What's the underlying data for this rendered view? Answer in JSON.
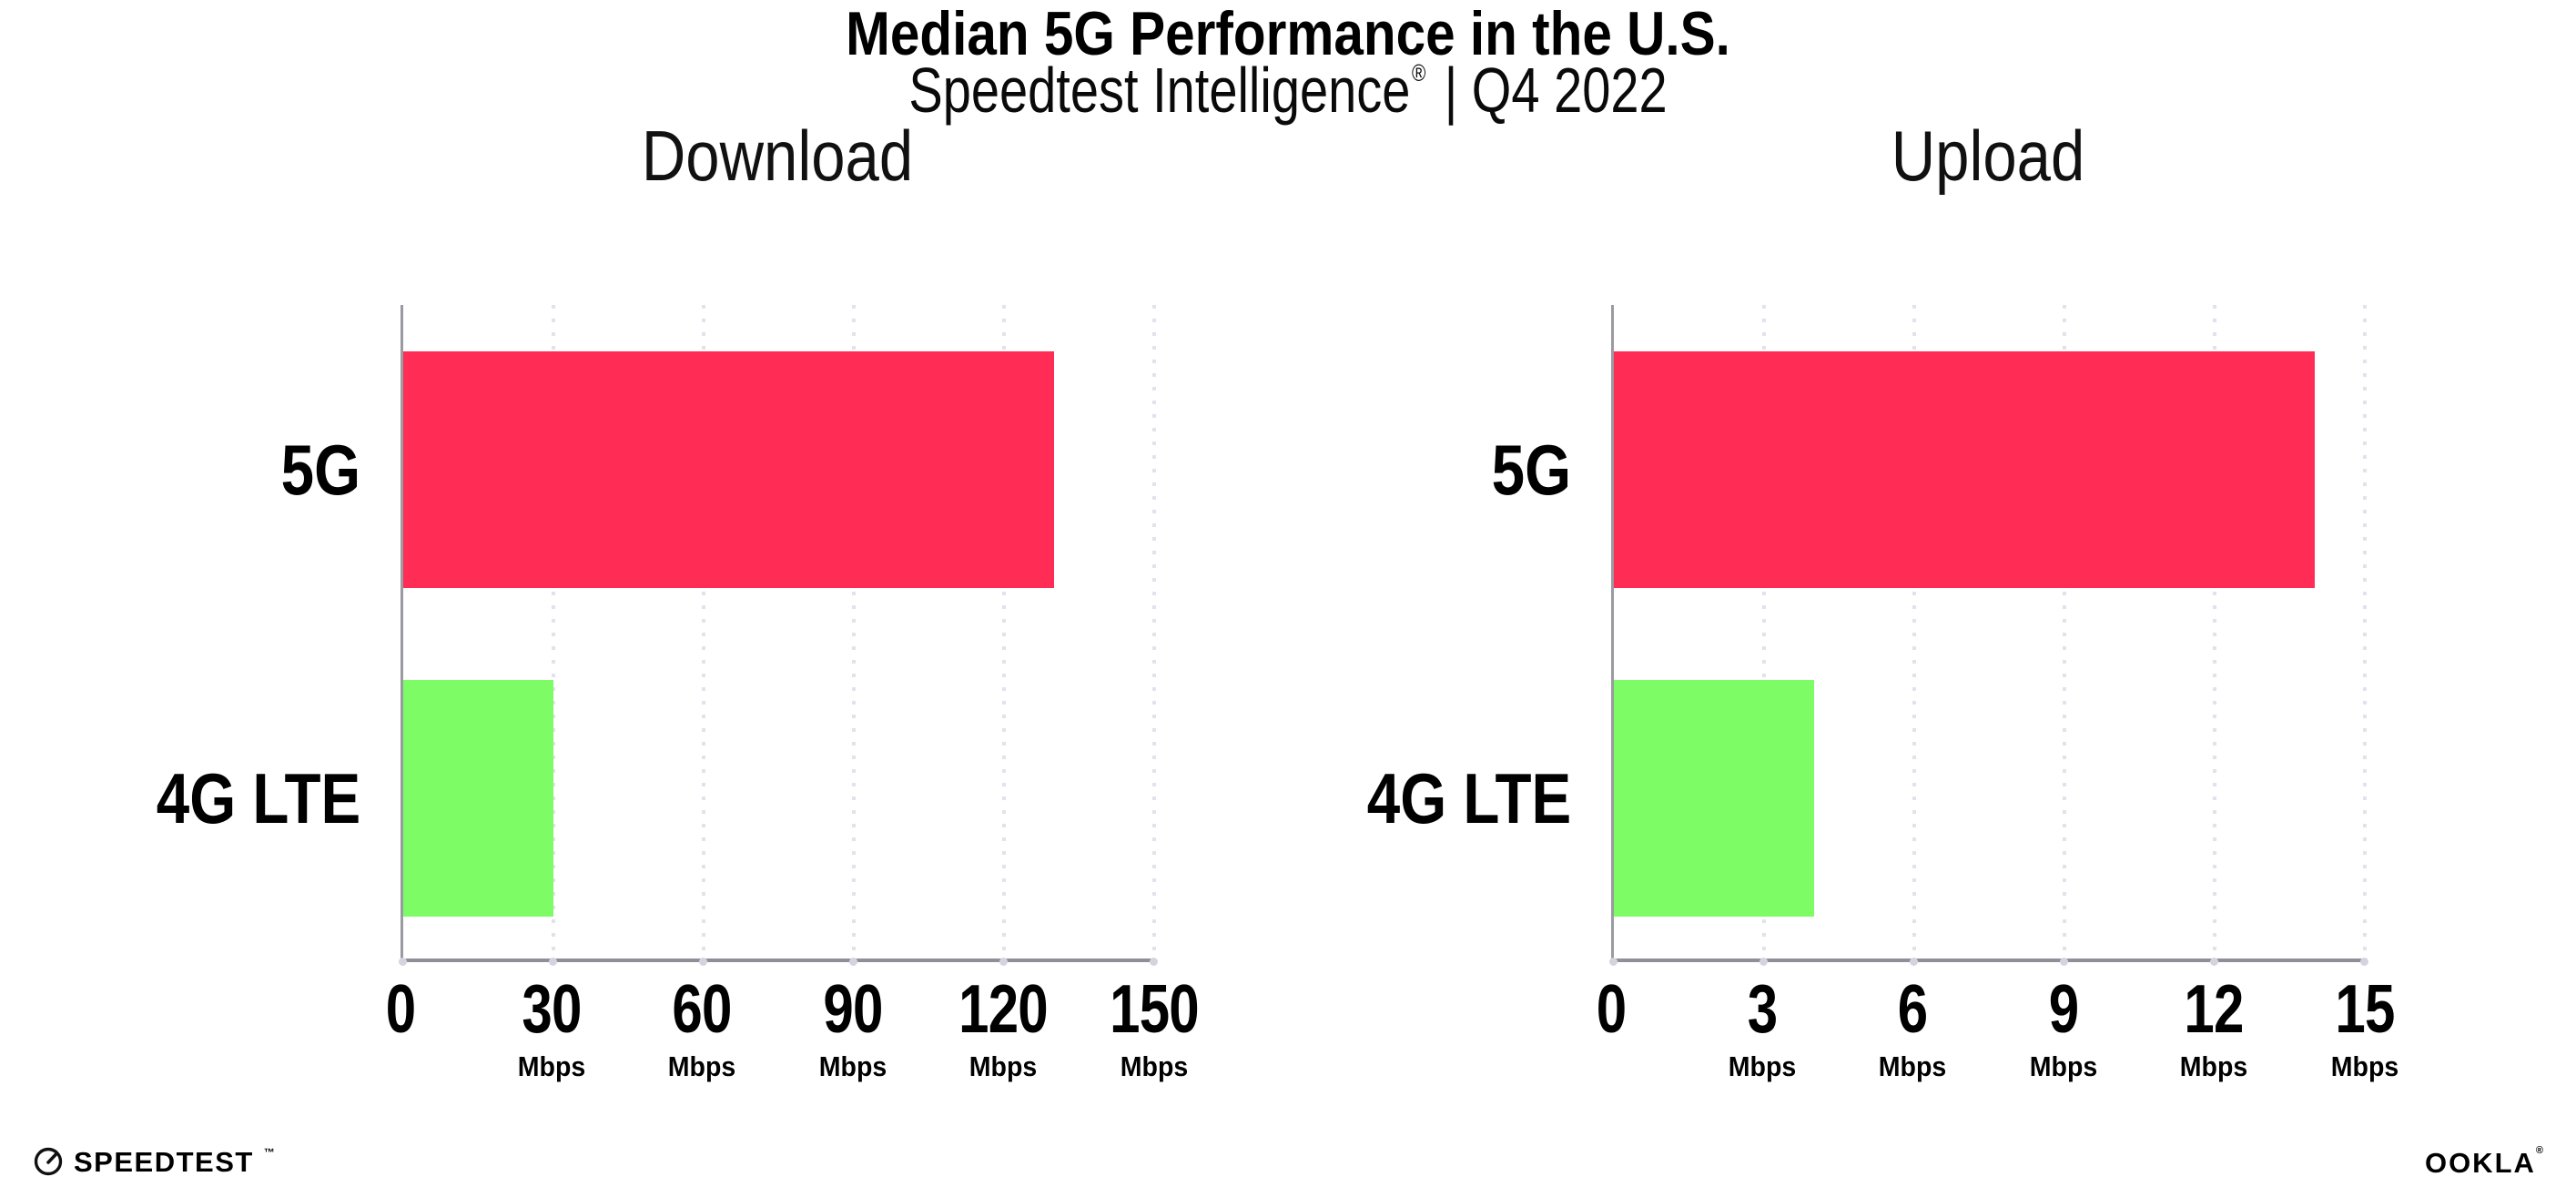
{
  "header": {
    "title": "Median 5G Performance in the U.S.",
    "subtitle_brand": "Speedtest Intelligence",
    "subtitle_reg": "®",
    "subtitle_rest": "| Q4 2022"
  },
  "colors": {
    "bar_5g": "#FF2D55",
    "bar_4g_lte": "#7DFC66",
    "axis": "#9a9aa1",
    "gridline": "#e2e2ec",
    "text": "#000000"
  },
  "chart_data": [
    {
      "type": "bar",
      "orientation": "horizontal",
      "title": "Download",
      "categories": [
        "5G",
        "4G LTE"
      ],
      "values": [
        130,
        30
      ],
      "unit": "Mbps",
      "xlim": [
        0,
        150
      ],
      "xticks": [
        0,
        30,
        60,
        90,
        120,
        150
      ],
      "bar_colors": [
        "#FF2D55",
        "#7DFC66"
      ],
      "grid": "vertical-dotted",
      "legend": "none"
    },
    {
      "type": "bar",
      "orientation": "horizontal",
      "title": "Upload",
      "categories": [
        "5G",
        "4G LTE"
      ],
      "values": [
        14,
        4
      ],
      "unit": "Mbps",
      "xlim": [
        0,
        15
      ],
      "xticks": [
        0,
        3,
        6,
        9,
        12,
        15
      ],
      "bar_colors": [
        "#FF2D55",
        "#7DFC66"
      ],
      "grid": "vertical-dotted",
      "legend": "none"
    }
  ],
  "footer": {
    "speedtest_logo_text": "SPEEDTEST",
    "speedtest_trademark": "™",
    "ookla_logo_text": "OOKLA",
    "ookla_trademark": "®"
  }
}
